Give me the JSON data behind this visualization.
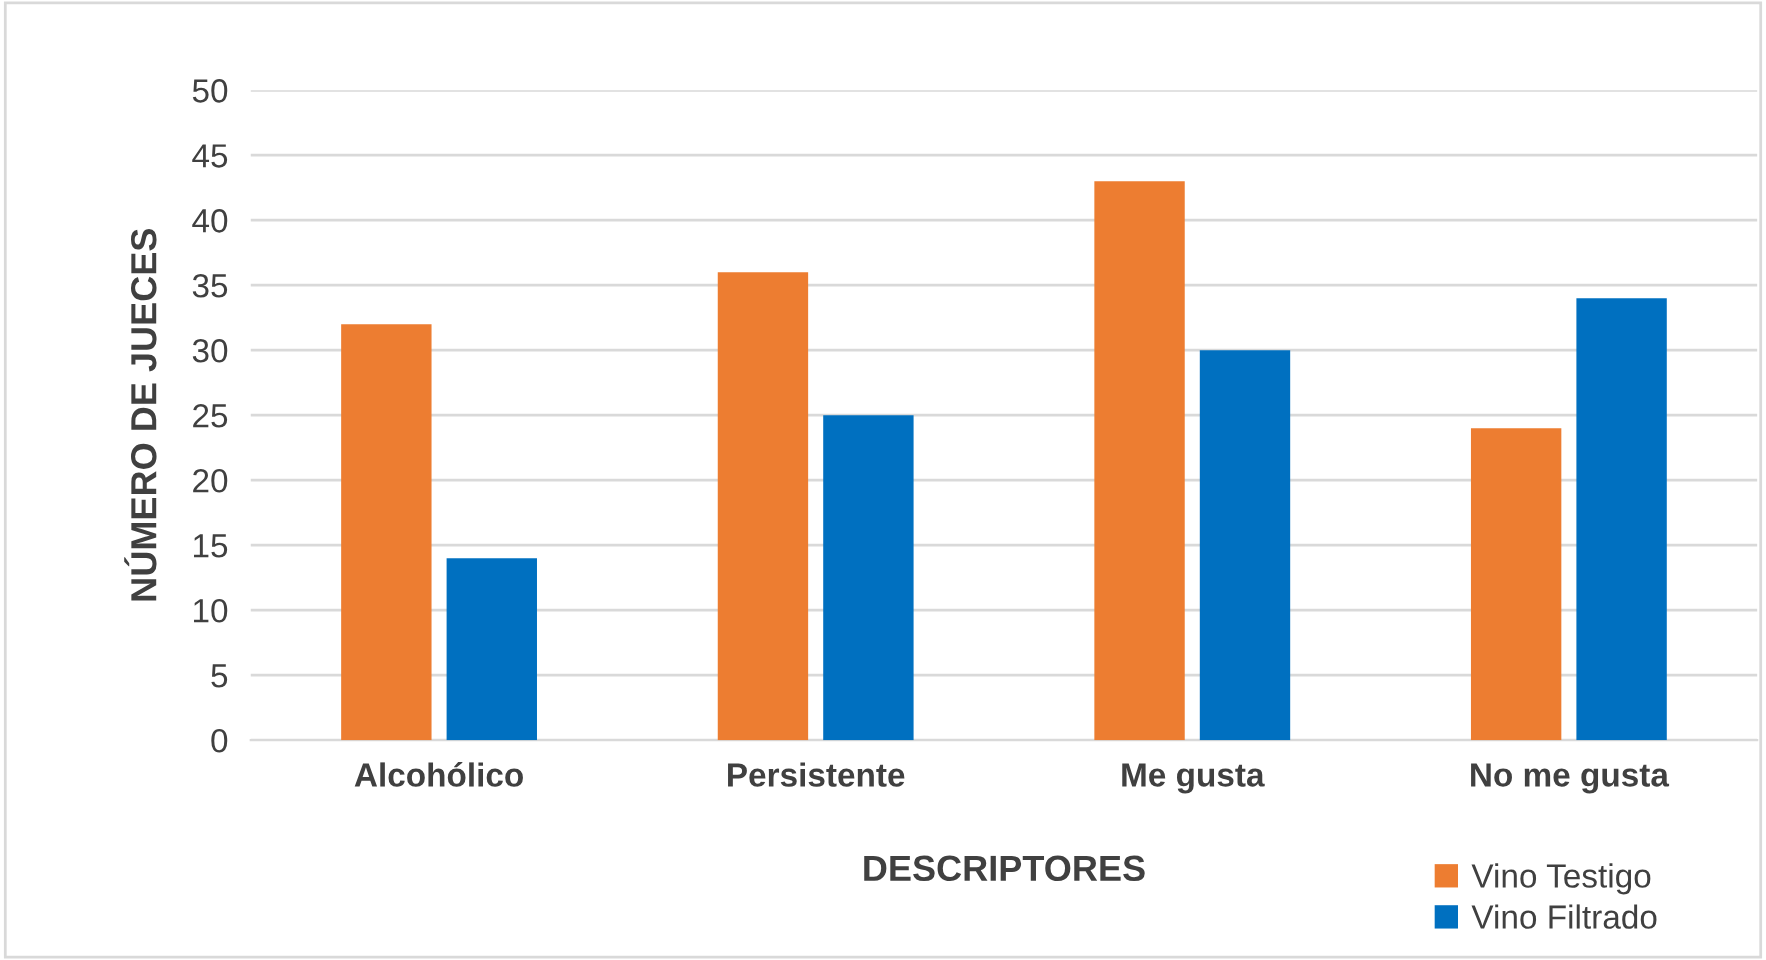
{
  "chart_data": {
    "type": "bar",
    "xlabel": "DESCRIPTORES",
    "ylabel": "NÚMERO DE JUECES",
    "categories": [
      "Alcohólico",
      "Persistente",
      "Me gusta",
      "No me gusta"
    ],
    "series": [
      {
        "name": "Vino Testigo",
        "color": "#ed7d31",
        "values": [
          32,
          36,
          43,
          24
        ]
      },
      {
        "name": "Vino Filtrado",
        "color": "#0070c0",
        "values": [
          14,
          25,
          30,
          34
        ]
      }
    ],
    "ylim": [
      0,
      50
    ],
    "yticks": [
      0,
      5,
      10,
      15,
      20,
      25,
      30,
      35,
      40,
      45,
      50
    ],
    "grid": "y",
    "legend": "bottom right"
  }
}
